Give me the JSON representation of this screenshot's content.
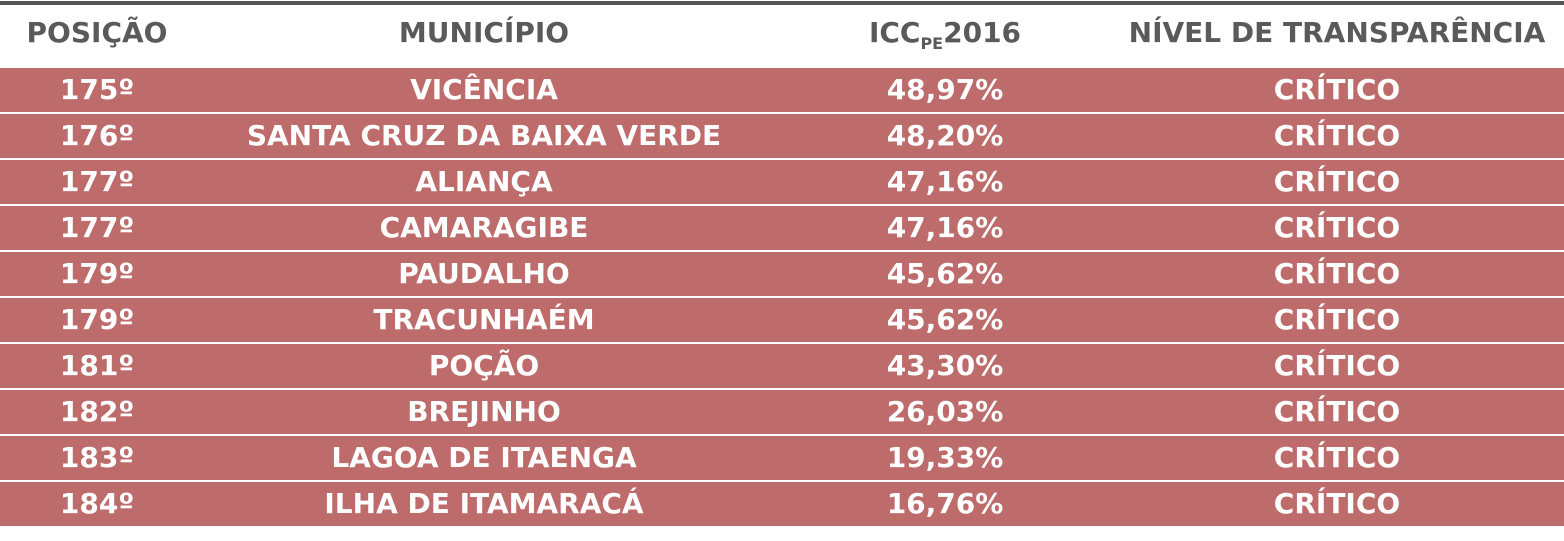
{
  "table": {
    "header": [
      "POSIÇÃO",
      "MUNICÍPIO",
      {
        "text": "ICC",
        "subscript": "PE",
        "suffix": "2016"
      },
      "NÍVEL DE TRANSPARÊNCIA"
    ],
    "rows": [
      [
        "175º",
        "VICÊNCIA",
        "48,97%",
        "CRÍTICO"
      ],
      [
        "176º",
        "SANTA CRUZ DA BAIXA VERDE",
        "48,20%",
        "CRÍTICO"
      ],
      [
        "177º",
        "ALIANÇA",
        "47,16%",
        "CRÍTICO"
      ],
      [
        "177º",
        "CAMARAGIBE",
        "47,16%",
        "CRÍTICO"
      ],
      [
        "179º",
        "PAUDALHO",
        "45,62%",
        "CRÍTICO"
      ],
      [
        "179º",
        "TRACUNHAÉM",
        "45,62%",
        "CRÍTICO"
      ],
      [
        "181º",
        "POÇÃO",
        "43,30%",
        "CRÍTICO"
      ],
      [
        "182º",
        "BREJINHO",
        "26,03%",
        "CRÍTICO"
      ],
      [
        "183º",
        "LAGOA DE ITAENGA",
        "19,33%",
        "CRÍTICO"
      ],
      [
        "184º",
        "ILHA DE ITAMARACÁ",
        "16,76%",
        "CRÍTICO"
      ]
    ]
  }
}
